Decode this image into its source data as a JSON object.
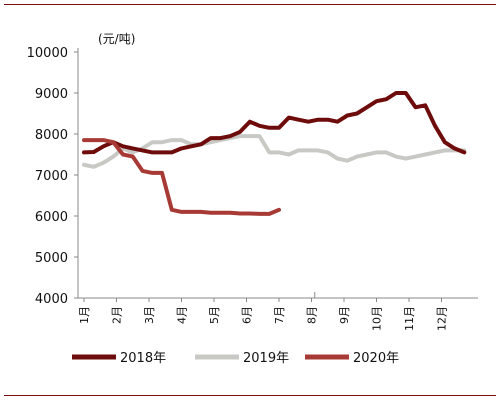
{
  "chart_data": {
    "type": "line",
    "unit_label": "(元/吨)",
    "ylim": [
      4000,
      10000
    ],
    "y_ticks": [
      "4000",
      "5000",
      "6000",
      "7000",
      "8000",
      "9000",
      "10000"
    ],
    "x_ticks": [
      "1月",
      "2月",
      "3月",
      "4月",
      "5月",
      "6月",
      "7月",
      "8月",
      "9月",
      "10月",
      "11月",
      "12月"
    ],
    "xlim": [
      1,
      12.8
    ],
    "grid": false,
    "legend": "bottom",
    "series": [
      {
        "name": "2018年",
        "color": "#6e0b0b",
        "x": [
          1.0,
          1.3,
          1.6,
          1.9,
          2.2,
          2.5,
          2.8,
          3.1,
          3.4,
          3.7,
          4.0,
          4.3,
          4.6,
          4.9,
          5.2,
          5.5,
          5.8,
          6.1,
          6.4,
          6.7,
          7.0,
          7.3,
          7.6,
          7.9,
          8.2,
          8.5,
          8.8,
          9.1,
          9.4,
          9.7,
          10.0,
          10.3,
          10.6,
          10.9,
          11.2,
          11.5,
          11.8,
          12.1,
          12.4,
          12.7
        ],
        "values": [
          7550,
          7560,
          7700,
          7800,
          7700,
          7650,
          7600,
          7550,
          7550,
          7550,
          7650,
          7700,
          7750,
          7900,
          7900,
          7950,
          8050,
          8300,
          8200,
          8150,
          8150,
          8400,
          8350,
          8300,
          8350,
          8350,
          8300,
          8450,
          8500,
          8650,
          8800,
          8850,
          9000,
          9000,
          8650,
          8700,
          8200,
          7800,
          7650,
          7550
        ]
      },
      {
        "name": "2019年",
        "color": "#c8c9c4",
        "x": [
          1.0,
          1.3,
          1.6,
          1.9,
          2.2,
          2.5,
          2.8,
          3.1,
          3.4,
          3.7,
          4.0,
          4.3,
          4.6,
          4.9,
          5.2,
          5.5,
          5.8,
          6.1,
          6.4,
          6.7,
          7.0,
          7.3,
          7.6,
          7.9,
          8.2,
          8.5,
          8.8,
          9.1,
          9.4,
          9.7,
          10.0,
          10.3,
          10.6,
          10.9,
          11.2,
          11.5,
          11.8,
          12.1,
          12.4,
          12.7
        ],
        "values": [
          7250,
          7200,
          7300,
          7450,
          7650,
          7550,
          7650,
          7800,
          7800,
          7850,
          7850,
          7750,
          7750,
          7800,
          7850,
          7900,
          7950,
          7950,
          7950,
          7550,
          7550,
          7500,
          7600,
          7600,
          7600,
          7550,
          7400,
          7350,
          7450,
          7500,
          7550,
          7550,
          7450,
          7400,
          7450,
          7500,
          7550,
          7600,
          7600,
          7600
        ]
      },
      {
        "name": "2020年",
        "color": "#a83a35",
        "x": [
          1.0,
          1.3,
          1.6,
          1.9,
          2.2,
          2.5,
          2.8,
          3.1,
          3.4,
          3.7,
          4.0,
          4.3,
          4.6,
          4.9,
          5.2,
          5.5,
          5.8,
          6.1,
          6.4,
          6.7,
          7.0
        ],
        "values": [
          7850,
          7850,
          7850,
          7800,
          7500,
          7450,
          7100,
          7050,
          7050,
          6150,
          6100,
          6100,
          6100,
          6080,
          6080,
          6080,
          6060,
          6060,
          6050,
          6050,
          6150
        ]
      }
    ]
  }
}
